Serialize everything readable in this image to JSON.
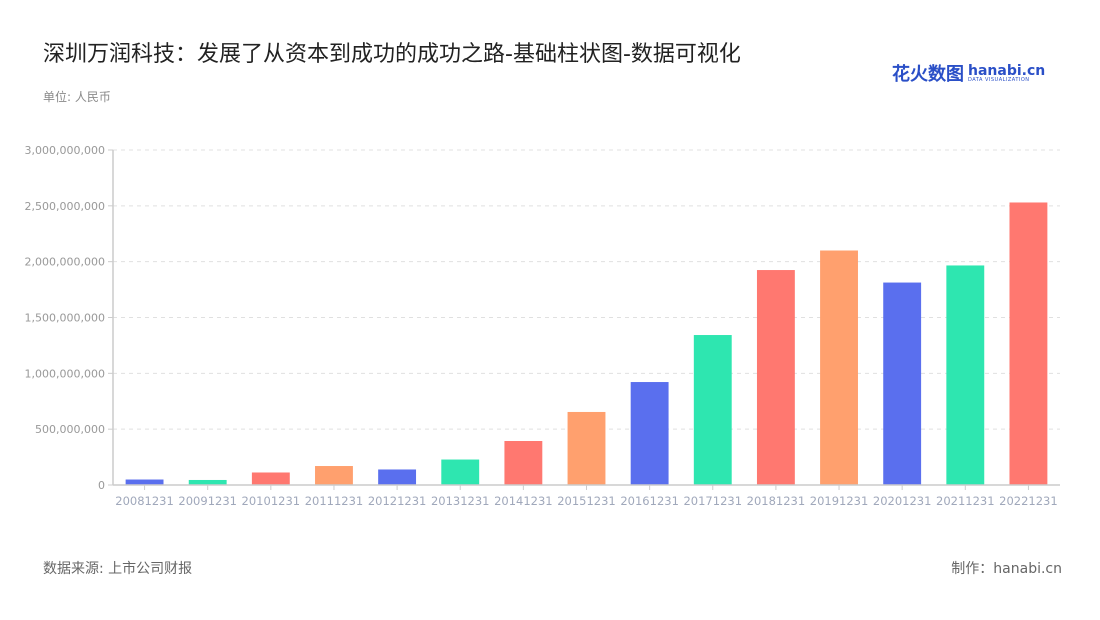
{
  "header": {
    "title": "深圳万润科技：发展了从资本到成功的成功之路-基础柱状图-数据可视化",
    "unit": "单位: 人民币"
  },
  "logo": {
    "cn": "花火数图",
    "en": "hanabi.cn",
    "tagline": "DATA VISUALIZATION"
  },
  "footer": {
    "source": "数据来源: 上市公司财报",
    "credit": "制作：hanabi.cn"
  },
  "colors": {
    "palette": [
      "#5a6fee",
      "#2ee6b0",
      "#ff7870",
      "#ffa06e"
    ],
    "axis": "#cccccc",
    "grid": "#e0e0e0",
    "tick_label": "#999999",
    "x_label": "#a0a8bb"
  },
  "chart_data": {
    "type": "bar",
    "title": "深圳万润科技：发展了从资本到成功的成功之路-基础柱状图-数据可视化",
    "xlabel": "",
    "ylabel": "单位: 人民币",
    "ylim": [
      0,
      3000000000
    ],
    "yticks": [
      0,
      500000000,
      1000000000,
      1500000000,
      2000000000,
      2500000000,
      3000000000
    ],
    "ytick_labels": [
      "0",
      "500,000,000",
      "1,000,000,000",
      "1,500,000,000",
      "2,000,000,000",
      "2,500,000,000",
      "3,000,000,000"
    ],
    "grid": true,
    "legend": "none",
    "categories": [
      "20081231",
      "20091231",
      "20101231",
      "20111231",
      "20121231",
      "20131231",
      "20141231",
      "20151231",
      "20161231",
      "20171231",
      "20181231",
      "20191231",
      "20201231",
      "20211231",
      "20221231"
    ],
    "values": [
      49000000,
      45000000,
      112000000,
      170000000,
      139000000,
      228000000,
      394000000,
      654000000,
      922000000,
      1343000000,
      1925000000,
      2100000000,
      1813000000,
      1966000000,
      2530000000
    ]
  }
}
